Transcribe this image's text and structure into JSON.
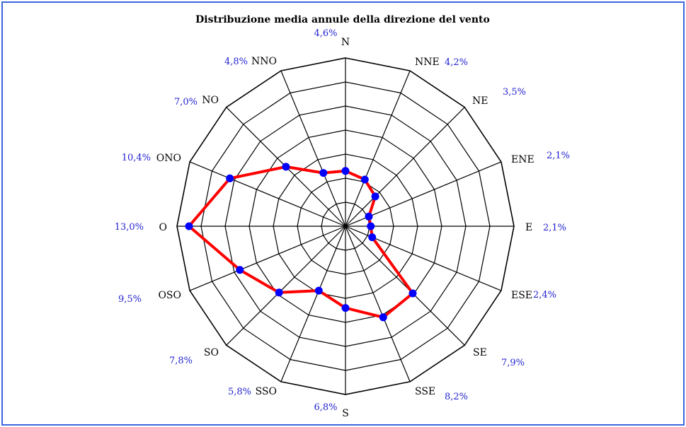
{
  "chart_data": {
    "type": "radar",
    "title": "Distribuzione media annule della direzione del vento",
    "categories": [
      "N",
      "NNE",
      "NE",
      "ENE",
      "E",
      "ESE",
      "SE",
      "SSE",
      "S",
      "SSO",
      "SO",
      "OSO",
      "O",
      "ONO",
      "NO",
      "NNO"
    ],
    "value_labels": [
      "4,6%",
      "4,2%",
      "3,5%",
      "2,1%",
      "2,1%",
      "2,4%",
      "7,9%",
      "8,2%",
      "6,8%",
      "5,8%",
      "7,8%",
      "9,5%",
      "13,0%",
      "10,4%",
      "7,0%",
      "4,8%"
    ],
    "values": [
      4.6,
      4.2,
      3.5,
      2.1,
      2.1,
      2.4,
      7.9,
      8.2,
      6.8,
      5.8,
      7.8,
      9.5,
      13.0,
      10.4,
      7.0,
      4.8
    ],
    "rlim": [
      0,
      14
    ],
    "ring_step": 2,
    "grid": true,
    "colors": {
      "series_line": "#ff0000",
      "series_marker": "#0000ff",
      "grid": "#000000",
      "value_text": "#1f1fd0",
      "border": "#3a66e0"
    }
  }
}
